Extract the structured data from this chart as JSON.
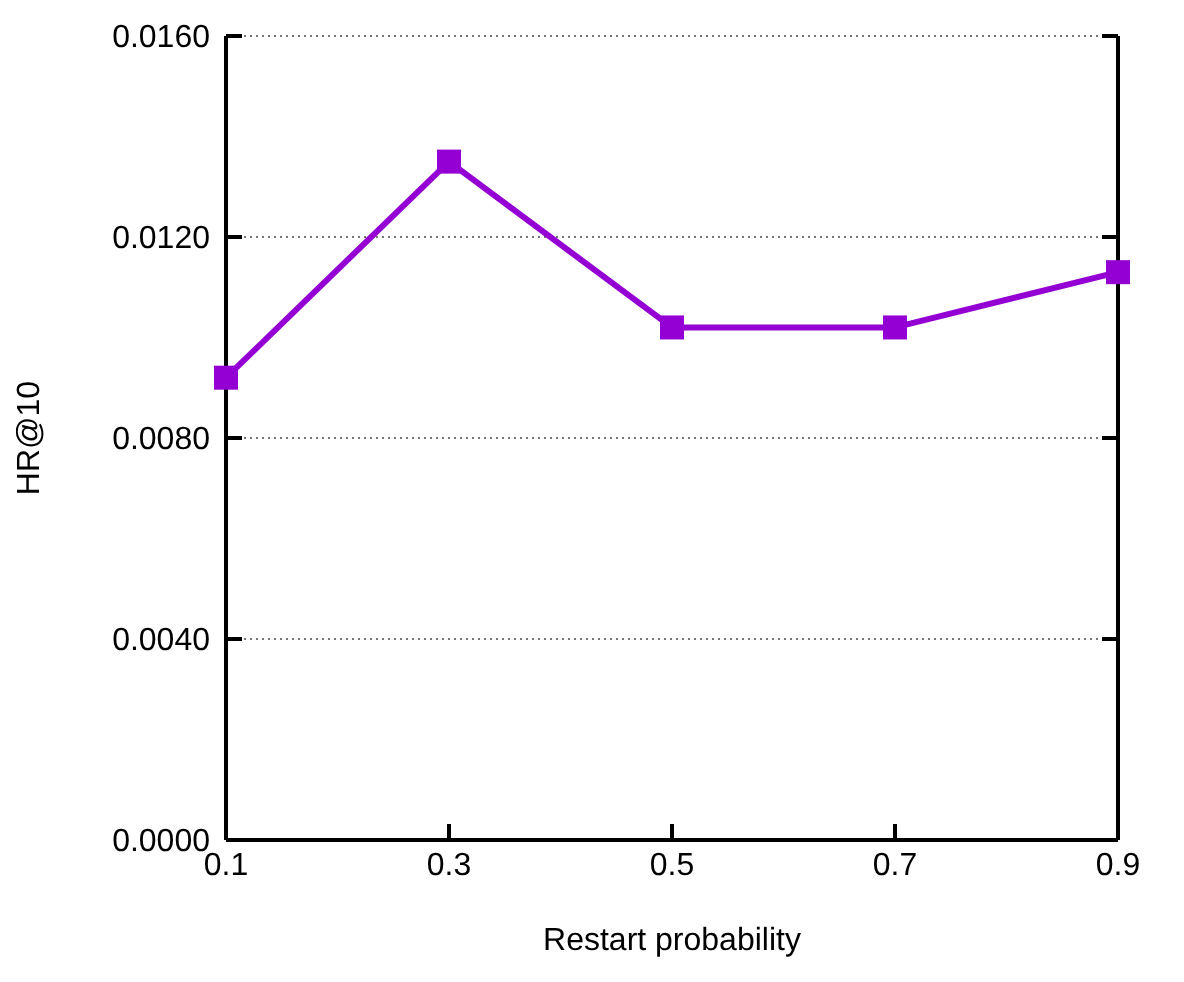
{
  "chart_data": {
    "type": "line",
    "xlabel": "Restart probability",
    "ylabel": "HR@10",
    "x": [
      0.1,
      0.3,
      0.5,
      0.7,
      0.9
    ],
    "series": [
      {
        "color": "#9400d3",
        "values": [
          0.0092,
          0.0135,
          0.0102,
          0.0102,
          0.0113
        ]
      }
    ],
    "xlim": [
      0.1,
      0.9
    ],
    "xticks": [
      0.1,
      0.3,
      0.5,
      0.7,
      0.9
    ],
    "ylim": [
      0,
      0.016
    ],
    "yticks": [
      {
        "value": 0,
        "label": "0.0000"
      },
      {
        "value": 0.004,
        "label": "0.0040"
      },
      {
        "value": 0.008,
        "label": "0.0080"
      },
      {
        "value": 0.012,
        "label": "0.0120"
      },
      {
        "value": 0.016,
        "label": "0.0160"
      }
    ],
    "grid": "y",
    "marker": "square",
    "line_style": "solid"
  }
}
